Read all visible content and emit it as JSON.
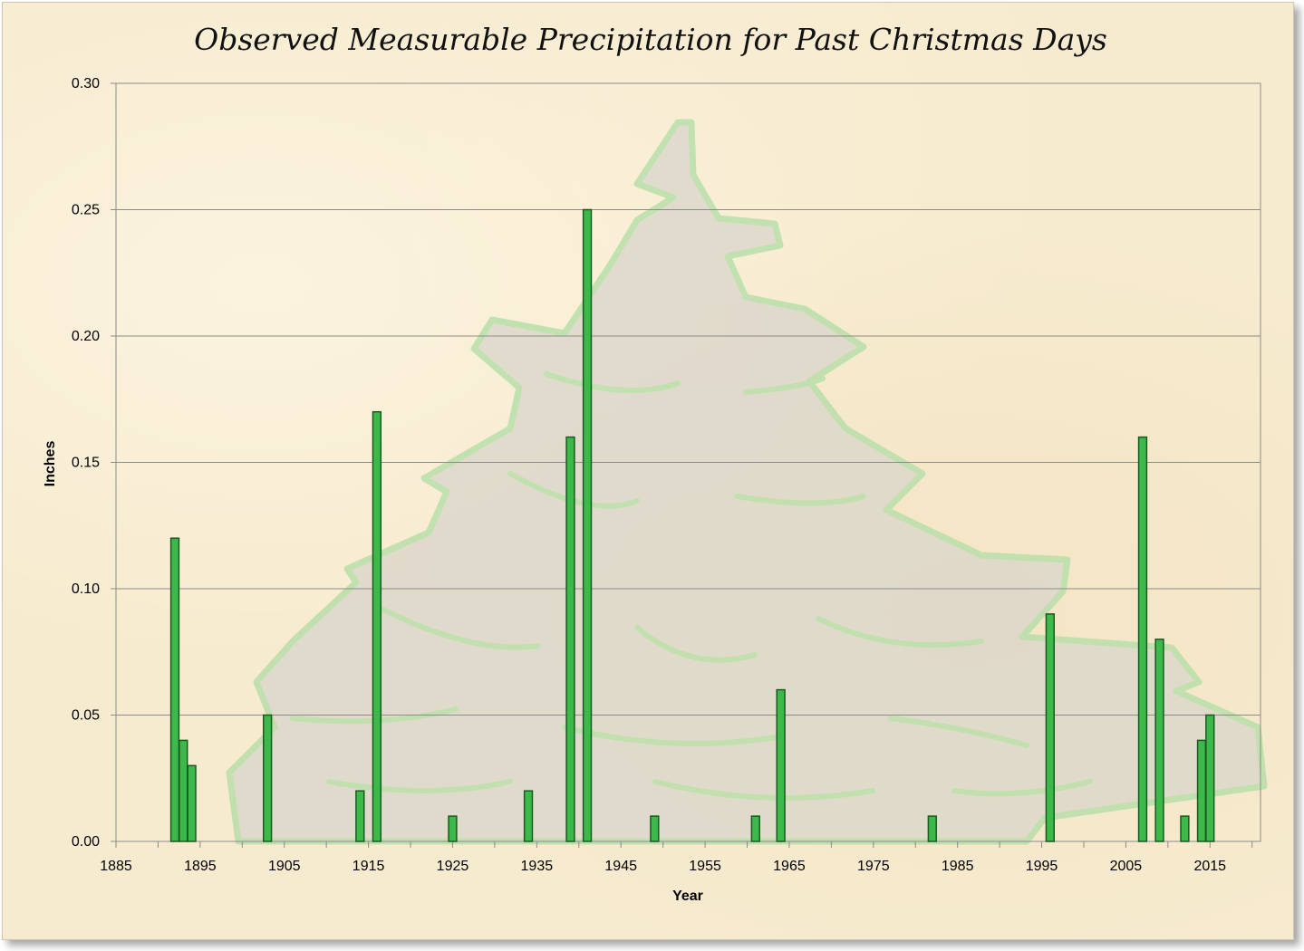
{
  "chart_data": {
    "type": "bar",
    "title": "Observed Measurable Precipitation for Past Christmas Days",
    "xlabel": "Year",
    "ylabel": "Inches",
    "xlim": [
      1885,
      2021
    ],
    "ylim": [
      0,
      0.3
    ],
    "x_ticks": [
      "1885",
      "1895",
      "1905",
      "1915",
      "1925",
      "1935",
      "1945",
      "1955",
      "1965",
      "1975",
      "1985",
      "1995",
      "2005",
      "2015"
    ],
    "y_ticks": [
      "0.00",
      "0.05",
      "0.10",
      "0.15",
      "0.20",
      "0.25",
      "0.30"
    ],
    "grid": "horizontal",
    "bar_color": "#3cb94a",
    "bar_edge_color": "#1a5a1f",
    "background_image": "christmas-tree",
    "x": [
      1892,
      1893,
      1894,
      1903,
      1914,
      1916,
      1925,
      1934,
      1939,
      1941,
      1949,
      1961,
      1964,
      1982,
      1996,
      2007,
      2009,
      2012,
      2014,
      2015
    ],
    "values": [
      0.12,
      0.04,
      0.03,
      0.05,
      0.02,
      0.17,
      0.01,
      0.02,
      0.16,
      0.25,
      0.01,
      0.01,
      0.06,
      0.01,
      0.09,
      0.16,
      0.08,
      0.01,
      0.04,
      0.05
    ]
  }
}
